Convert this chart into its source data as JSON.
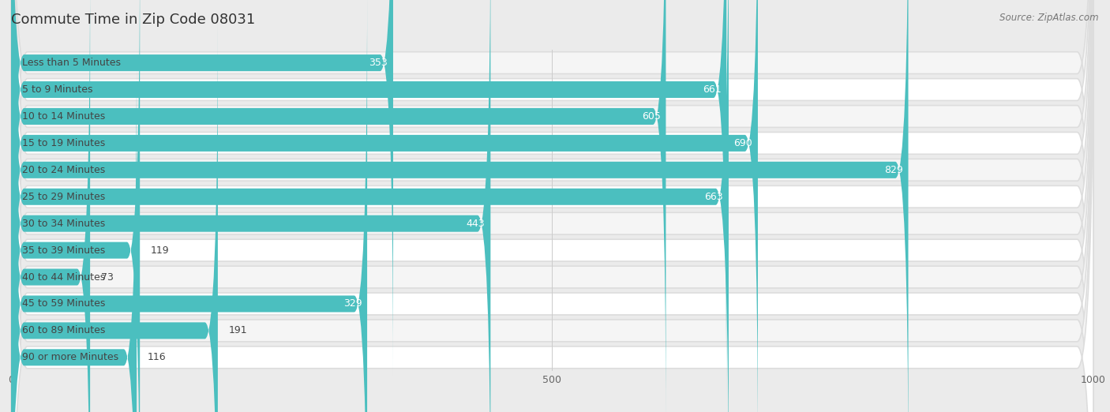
{
  "title": "Commute Time in Zip Code 08031",
  "source": "Source: ZipAtlas.com",
  "categories": [
    "Less than 5 Minutes",
    "5 to 9 Minutes",
    "10 to 14 Minutes",
    "15 to 19 Minutes",
    "20 to 24 Minutes",
    "25 to 29 Minutes",
    "30 to 34 Minutes",
    "35 to 39 Minutes",
    "40 to 44 Minutes",
    "45 to 59 Minutes",
    "60 to 89 Minutes",
    "90 or more Minutes"
  ],
  "values": [
    353,
    661,
    605,
    690,
    829,
    663,
    443,
    119,
    73,
    329,
    191,
    116
  ],
  "bar_color": "#4bbfbf",
  "bg_color": "#ebebeb",
  "row_bg_even": "#f5f5f5",
  "row_bg_odd": "#ffffff",
  "text_color": "#444444",
  "title_color": "#333333",
  "source_color": "#777777",
  "grid_color": "#cccccc",
  "xlim": [
    0,
    1000
  ],
  "xticks": [
    0,
    500,
    1000
  ],
  "title_fontsize": 13,
  "label_fontsize": 9,
  "value_fontsize": 9,
  "source_fontsize": 8.5
}
